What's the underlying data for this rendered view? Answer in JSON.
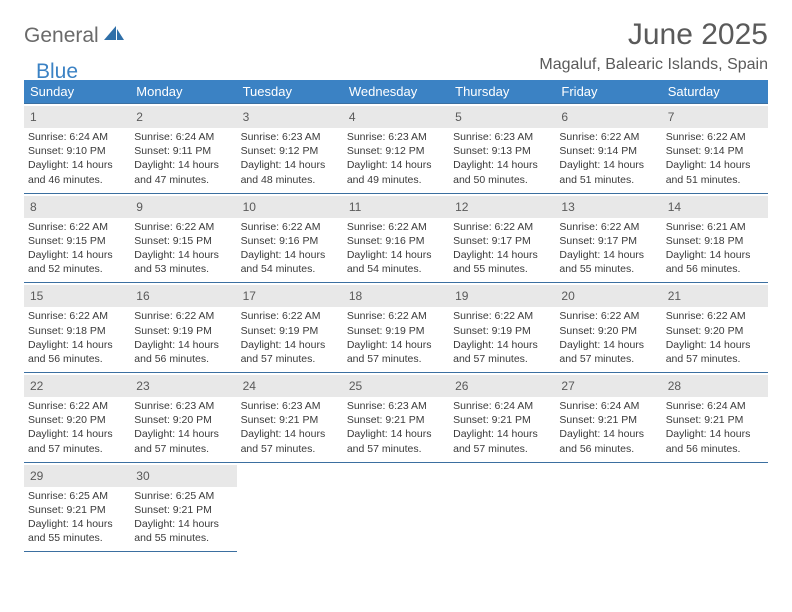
{
  "logo": {
    "text1": "General",
    "text2": "Blue"
  },
  "title": "June 2025",
  "location": "Magaluf, Balearic Islands, Spain",
  "colors": {
    "header_bg": "#3b82c4",
    "header_text": "#ffffff",
    "daynum_bg": "#e8e8e8",
    "rule": "#3b6fa0",
    "body_text": "#3a3a3a",
    "muted": "#5a5a5a"
  },
  "weekdays": [
    "Sunday",
    "Monday",
    "Tuesday",
    "Wednesday",
    "Thursday",
    "Friday",
    "Saturday"
  ],
  "days": [
    {
      "n": "1",
      "sunrise": "6:24 AM",
      "sunset": "9:10 PM",
      "dh": "14",
      "dm": "46"
    },
    {
      "n": "2",
      "sunrise": "6:24 AM",
      "sunset": "9:11 PM",
      "dh": "14",
      "dm": "47"
    },
    {
      "n": "3",
      "sunrise": "6:23 AM",
      "sunset": "9:12 PM",
      "dh": "14",
      "dm": "48"
    },
    {
      "n": "4",
      "sunrise": "6:23 AM",
      "sunset": "9:12 PM",
      "dh": "14",
      "dm": "49"
    },
    {
      "n": "5",
      "sunrise": "6:23 AM",
      "sunset": "9:13 PM",
      "dh": "14",
      "dm": "50"
    },
    {
      "n": "6",
      "sunrise": "6:22 AM",
      "sunset": "9:14 PM",
      "dh": "14",
      "dm": "51"
    },
    {
      "n": "7",
      "sunrise": "6:22 AM",
      "sunset": "9:14 PM",
      "dh": "14",
      "dm": "51"
    },
    {
      "n": "8",
      "sunrise": "6:22 AM",
      "sunset": "9:15 PM",
      "dh": "14",
      "dm": "52"
    },
    {
      "n": "9",
      "sunrise": "6:22 AM",
      "sunset": "9:15 PM",
      "dh": "14",
      "dm": "53"
    },
    {
      "n": "10",
      "sunrise": "6:22 AM",
      "sunset": "9:16 PM",
      "dh": "14",
      "dm": "54"
    },
    {
      "n": "11",
      "sunrise": "6:22 AM",
      "sunset": "9:16 PM",
      "dh": "14",
      "dm": "54"
    },
    {
      "n": "12",
      "sunrise": "6:22 AM",
      "sunset": "9:17 PM",
      "dh": "14",
      "dm": "55"
    },
    {
      "n": "13",
      "sunrise": "6:22 AM",
      "sunset": "9:17 PM",
      "dh": "14",
      "dm": "55"
    },
    {
      "n": "14",
      "sunrise": "6:21 AM",
      "sunset": "9:18 PM",
      "dh": "14",
      "dm": "56"
    },
    {
      "n": "15",
      "sunrise": "6:22 AM",
      "sunset": "9:18 PM",
      "dh": "14",
      "dm": "56"
    },
    {
      "n": "16",
      "sunrise": "6:22 AM",
      "sunset": "9:19 PM",
      "dh": "14",
      "dm": "56"
    },
    {
      "n": "17",
      "sunrise": "6:22 AM",
      "sunset": "9:19 PM",
      "dh": "14",
      "dm": "57"
    },
    {
      "n": "18",
      "sunrise": "6:22 AM",
      "sunset": "9:19 PM",
      "dh": "14",
      "dm": "57"
    },
    {
      "n": "19",
      "sunrise": "6:22 AM",
      "sunset": "9:19 PM",
      "dh": "14",
      "dm": "57"
    },
    {
      "n": "20",
      "sunrise": "6:22 AM",
      "sunset": "9:20 PM",
      "dh": "14",
      "dm": "57"
    },
    {
      "n": "21",
      "sunrise": "6:22 AM",
      "sunset": "9:20 PM",
      "dh": "14",
      "dm": "57"
    },
    {
      "n": "22",
      "sunrise": "6:22 AM",
      "sunset": "9:20 PM",
      "dh": "14",
      "dm": "57"
    },
    {
      "n": "23",
      "sunrise": "6:23 AM",
      "sunset": "9:20 PM",
      "dh": "14",
      "dm": "57"
    },
    {
      "n": "24",
      "sunrise": "6:23 AM",
      "sunset": "9:21 PM",
      "dh": "14",
      "dm": "57"
    },
    {
      "n": "25",
      "sunrise": "6:23 AM",
      "sunset": "9:21 PM",
      "dh": "14",
      "dm": "57"
    },
    {
      "n": "26",
      "sunrise": "6:24 AM",
      "sunset": "9:21 PM",
      "dh": "14",
      "dm": "57"
    },
    {
      "n": "27",
      "sunrise": "6:24 AM",
      "sunset": "9:21 PM",
      "dh": "14",
      "dm": "56"
    },
    {
      "n": "28",
      "sunrise": "6:24 AM",
      "sunset": "9:21 PM",
      "dh": "14",
      "dm": "56"
    },
    {
      "n": "29",
      "sunrise": "6:25 AM",
      "sunset": "9:21 PM",
      "dh": "14",
      "dm": "55"
    },
    {
      "n": "30",
      "sunrise": "6:25 AM",
      "sunset": "9:21 PM",
      "dh": "14",
      "dm": "55"
    }
  ],
  "labels": {
    "sunrise": "Sunrise:",
    "sunset": "Sunset:",
    "daylight": "Daylight:",
    "hours_word": "hours",
    "and_word": "and",
    "minutes_word": "minutes."
  },
  "layout": {
    "first_weekday_index": 0,
    "trailing_blanks": 5
  }
}
